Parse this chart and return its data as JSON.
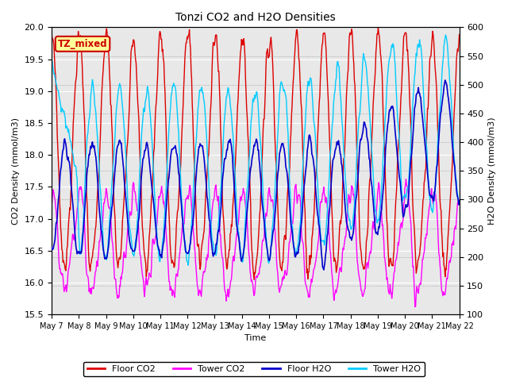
{
  "title": "Tonzi CO2 and H2O Densities",
  "xlabel": "Time",
  "ylabel_left": "CO2 Density (mmol/m3)",
  "ylabel_right": "H2O Density (mmol/m3)",
  "ylim_left": [
    15.5,
    20.0
  ],
  "ylim_right": [
    100,
    600
  ],
  "xtick_labels": [
    "May 7",
    "May 8",
    "May 9",
    "May 10",
    "May 11",
    "May 12",
    "May 13",
    "May 14",
    "May 15",
    "May 16",
    "May 17",
    "May 18",
    "May 19",
    "May 20",
    "May 21",
    "May 22"
  ],
  "annotation_text": "TZ_mixed",
  "annotation_color": "#cc0000",
  "annotation_bg": "#ffff99",
  "line_colors": {
    "floor_co2": "#dd0000",
    "tower_co2": "#ff00ff",
    "floor_h2o": "#0000cc",
    "tower_h2o": "#00ccff"
  },
  "legend_labels": [
    "Floor CO2",
    "Tower CO2",
    "Floor H2O",
    "Tower H2O"
  ],
  "plot_bg": "#e8e8e8",
  "n_points": 720,
  "days": 15
}
